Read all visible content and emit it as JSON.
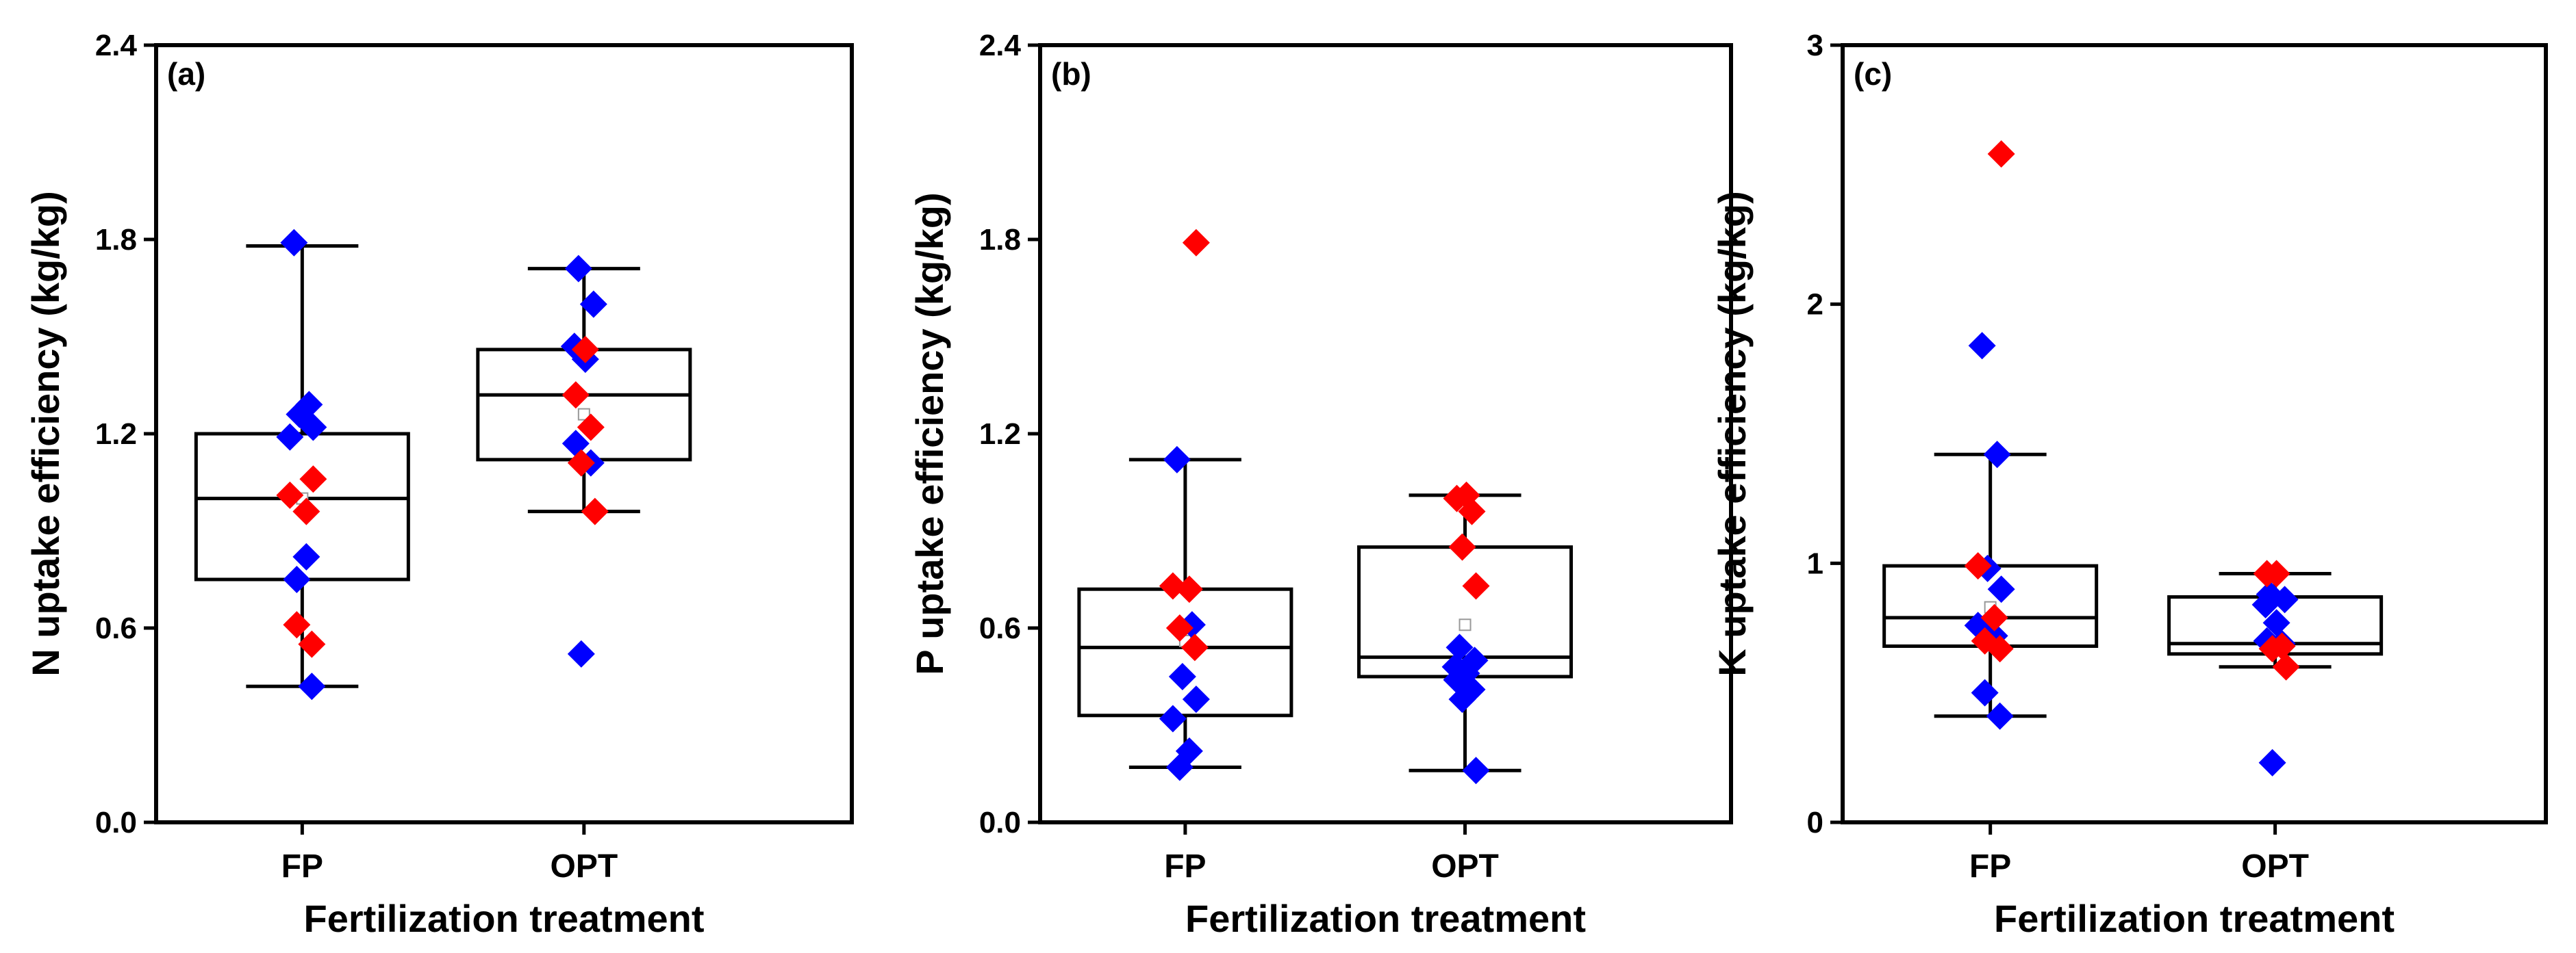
{
  "colors": {
    "point_primary": "#0000ff",
    "point_secondary": "#ff0000",
    "axis": "#000000",
    "mean_marker": "#999999"
  },
  "chart_data": [
    {
      "type": "box",
      "panel_label": "(a)",
      "title": "",
      "xlabel": "Fertilization treatment",
      "ylabel": "N uptake efficiency (kg/kg)",
      "ylim": [
        0,
        2.4
      ],
      "yticks": [
        0.0,
        0.6,
        1.2,
        1.8,
        2.4
      ],
      "ytick_labels": [
        "0.0",
        "0.6",
        "1.2",
        "1.8",
        "2.4"
      ],
      "categories": [
        "FP",
        "OPT"
      ],
      "boxes": [
        {
          "category": "FP",
          "whisker_low": 0.42,
          "q1": 0.75,
          "median": 1.0,
          "q3": 1.2,
          "whisker_high": 1.78,
          "mean": 1.0
        },
        {
          "category": "OPT",
          "whisker_low": 0.96,
          "q1": 1.12,
          "median": 1.32,
          "q3": 1.46,
          "whisker_high": 1.71,
          "mean": 1.26
        }
      ],
      "points": [
        {
          "category": "FP",
          "series": "blue",
          "values": [
            1.79,
            1.29,
            1.26,
            1.22,
            1.19,
            0.82,
            0.75,
            0.42
          ]
        },
        {
          "category": "FP",
          "series": "red",
          "values": [
            1.06,
            1.01,
            0.96,
            0.61,
            0.55
          ]
        },
        {
          "category": "OPT",
          "series": "blue",
          "values": [
            1.71,
            1.6,
            1.47,
            1.43,
            1.17,
            1.11,
            0.52
          ]
        },
        {
          "category": "OPT",
          "series": "red",
          "values": [
            1.46,
            1.32,
            1.22,
            1.11,
            0.96
          ]
        }
      ]
    },
    {
      "type": "box",
      "panel_label": "(b)",
      "title": "",
      "xlabel": "Fertilization treatment",
      "ylabel": "P uptake efficiency (kg/kg)",
      "ylim": [
        0,
        2.4
      ],
      "yticks": [
        0.0,
        0.6,
        1.2,
        1.8,
        2.4
      ],
      "ytick_labels": [
        "0.0",
        "0.6",
        "1.2",
        "1.8",
        "2.4"
      ],
      "categories": [
        "FP",
        "OPT"
      ],
      "boxes": [
        {
          "category": "FP",
          "whisker_low": 0.17,
          "q1": 0.33,
          "median": 0.54,
          "q3": 0.72,
          "whisker_high": 1.12,
          "mean": 0.56
        },
        {
          "category": "OPT",
          "whisker_low": 0.16,
          "q1": 0.45,
          "median": 0.51,
          "q3": 0.85,
          "whisker_high": 1.01,
          "mean": 0.61
        }
      ],
      "points": [
        {
          "category": "FP",
          "series": "blue",
          "values": [
            1.12,
            0.61,
            0.45,
            0.38,
            0.32,
            0.22,
            0.17
          ]
        },
        {
          "category": "FP",
          "series": "red",
          "values": [
            1.79,
            0.73,
            0.72,
            0.6,
            0.54
          ]
        },
        {
          "category": "OPT",
          "series": "blue",
          "values": [
            0.54,
            0.5,
            0.48,
            0.46,
            0.44,
            0.41,
            0.38,
            0.16
          ]
        },
        {
          "category": "OPT",
          "series": "red",
          "values": [
            1.01,
            1.0,
            0.96,
            0.85,
            0.73
          ]
        }
      ]
    },
    {
      "type": "box",
      "panel_label": "(c)",
      "title": "",
      "xlabel": "Fertilization treatment",
      "ylabel": "K uptake efficiency (kg/kg)",
      "ylim": [
        0,
        3
      ],
      "yticks": [
        0,
        1,
        2,
        3
      ],
      "ytick_labels": [
        "0",
        "1",
        "2",
        "3"
      ],
      "categories": [
        "FP",
        "OPT"
      ],
      "boxes": [
        {
          "category": "FP",
          "whisker_low": 0.41,
          "q1": 0.68,
          "median": 0.79,
          "q3": 0.99,
          "whisker_high": 1.42,
          "mean": 0.83
        },
        {
          "category": "OPT",
          "whisker_low": 0.6,
          "q1": 0.65,
          "median": 0.69,
          "q3": 0.87,
          "whisker_high": 0.96,
          "mean": 0.73
        }
      ],
      "points": [
        {
          "category": "FP",
          "series": "blue",
          "values": [
            1.84,
            1.42,
            0.98,
            0.9,
            0.76,
            0.72,
            0.5,
            0.41
          ]
        },
        {
          "category": "FP",
          "series": "red",
          "values": [
            2.58,
            0.99,
            0.79,
            0.7,
            0.67
          ]
        },
        {
          "category": "OPT",
          "series": "blue",
          "values": [
            0.88,
            0.86,
            0.84,
            0.77,
            0.7,
            0.69,
            0.23
          ]
        },
        {
          "category": "OPT",
          "series": "red",
          "values": [
            0.96,
            0.96,
            0.68,
            0.67,
            0.6
          ]
        }
      ]
    }
  ]
}
